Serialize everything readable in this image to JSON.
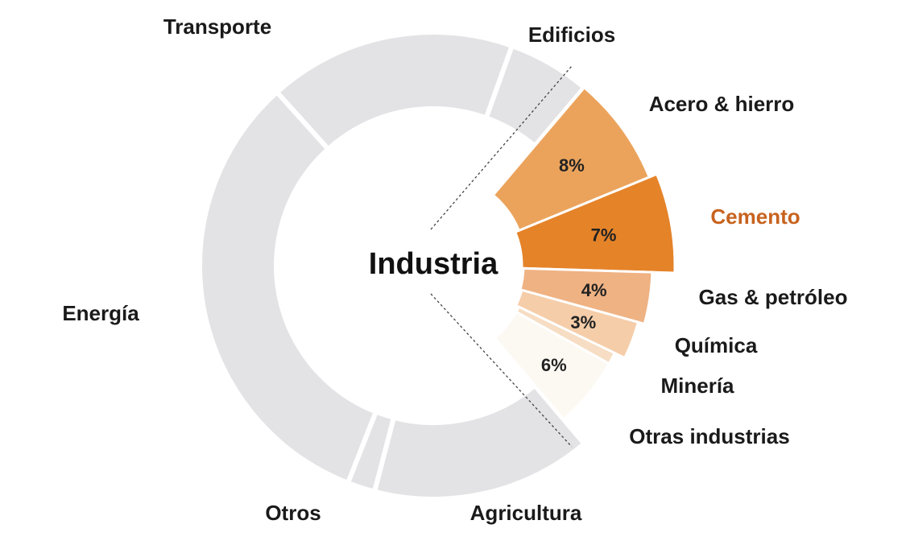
{
  "chart_data": {
    "type": "pie",
    "title": "",
    "center_label": "Industria",
    "colors": {
      "gray": "#e3e2e5",
      "highlight": "#c8631f"
    },
    "sectors": [
      {
        "label": "Transporte",
        "value": 18,
        "pct_label": ""
      },
      {
        "label": "Edificios",
        "value": 6,
        "pct_label": ""
      },
      {
        "label": "Energía",
        "value": 34,
        "pct_label": ""
      },
      {
        "label": "Otros",
        "value": 2,
        "pct_label": ""
      },
      {
        "label": "Agricultura",
        "value": 16,
        "pct_label": ""
      }
    ],
    "industry_breakdown": [
      {
        "label": "Acero & hierro",
        "value": 8,
        "pct_label": "8%",
        "color": "#eba35c"
      },
      {
        "label": "Cemento",
        "value": 7,
        "pct_label": "7%",
        "color": "#e58329"
      },
      {
        "label": "Gas & petróleo",
        "value": 4,
        "pct_label": "4%",
        "color": "#efb283"
      },
      {
        "label": "Química",
        "value": 3,
        "pct_label": "3%",
        "color": "#f5cda9"
      },
      {
        "label": "Minería",
        "value": 1,
        "pct_label": "",
        "color": "#f6ddc3"
      },
      {
        "label": "Otras industrias",
        "value": 6,
        "pct_label": "6%",
        "color": "#fcf9f3"
      }
    ]
  }
}
